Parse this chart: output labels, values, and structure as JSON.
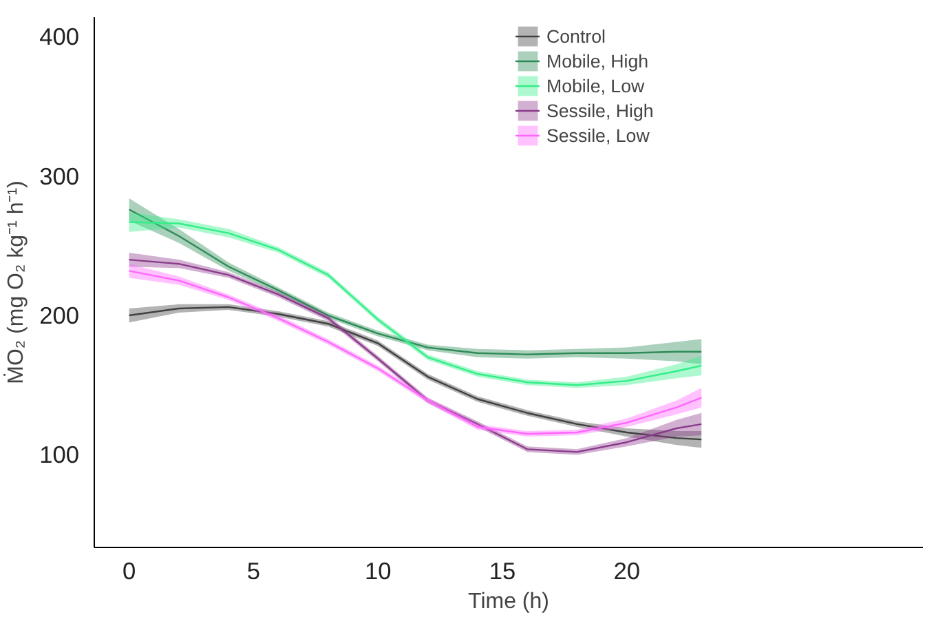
{
  "chart_data": {
    "type": "line",
    "xlabel": "Time (h)",
    "ylabel": "ṀO₂ (mg O₂ kg⁻¹ h⁻¹)",
    "x": [
      0,
      2,
      4,
      6,
      8,
      10,
      12,
      14,
      16,
      18,
      20,
      22,
      23
    ],
    "series": [
      {
        "name": "Control",
        "color": "#404040",
        "values": [
          200,
          205,
          206,
          201,
          194,
          180,
          156,
          140,
          130,
          122,
          116,
          112,
          111
        ],
        "lower": [
          195,
          202,
          204,
          199,
          192,
          178,
          154,
          138,
          128,
          120,
          113,
          107,
          105
        ],
        "upper": [
          205,
          208,
          208,
          203,
          196,
          182,
          158,
          142,
          132,
          124,
          119,
          117,
          117
        ]
      },
      {
        "name": "Mobile, High",
        "color": "#2e8b57",
        "values": [
          276,
          257,
          235,
          218,
          200,
          187,
          177,
          173,
          172,
          173,
          173,
          174,
          174
        ],
        "lower": [
          268,
          252,
          232,
          216,
          198,
          185,
          175,
          170,
          169,
          170,
          169,
          167,
          165
        ],
        "upper": [
          284,
          262,
          238,
          220,
          202,
          189,
          179,
          176,
          175,
          176,
          177,
          181,
          183
        ]
      },
      {
        "name": "Mobile, Low",
        "color": "#33ee88",
        "values": [
          267,
          266,
          259,
          247,
          229,
          197,
          170,
          158,
          152,
          150,
          153,
          160,
          164
        ],
        "lower": [
          260,
          263,
          256,
          245,
          227,
          195,
          168,
          156,
          150,
          148,
          150,
          155,
          157
        ],
        "upper": [
          274,
          269,
          262,
          249,
          231,
          199,
          172,
          160,
          154,
          152,
          156,
          165,
          171
        ]
      },
      {
        "name": "Sessile, High",
        "color": "#8b3a8b",
        "values": [
          240,
          237,
          229,
          215,
          198,
          169,
          139,
          122,
          104,
          102,
          109,
          119,
          122
        ],
        "lower": [
          235,
          234,
          227,
          213,
          196,
          167,
          137,
          120,
          102,
          100,
          106,
          113,
          114
        ],
        "upper": [
          245,
          240,
          231,
          217,
          200,
          171,
          141,
          124,
          106,
          104,
          112,
          125,
          130
        ]
      },
      {
        "name": "Sessile, Low",
        "color": "#ff66ff",
        "values": [
          232,
          225,
          213,
          198,
          181,
          162,
          139,
          120,
          115,
          116,
          123,
          134,
          141
        ],
        "lower": [
          227,
          222,
          211,
          196,
          179,
          160,
          137,
          118,
          113,
          114,
          120,
          129,
          134
        ],
        "upper": [
          237,
          228,
          215,
          200,
          183,
          164,
          141,
          122,
          117,
          118,
          126,
          139,
          148
        ]
      }
    ],
    "xlim": [
      -1.4,
      31.9
    ],
    "ylim": [
      33.5,
      414
    ],
    "xticks": [
      0,
      5,
      10,
      15,
      20
    ],
    "yticks": [
      100,
      200,
      300,
      400
    ],
    "grid": false,
    "legend": "top right",
    "marker": "none",
    "line_style": "solid"
  }
}
